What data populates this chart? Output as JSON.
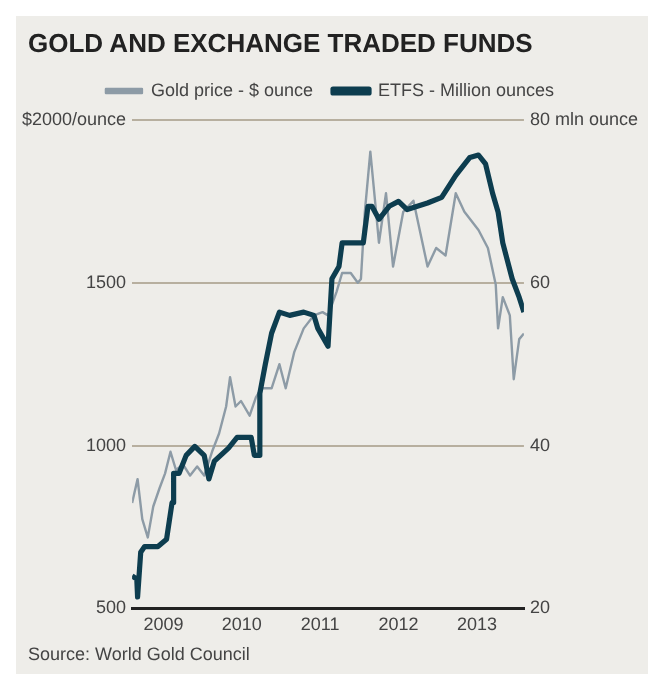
{
  "chart_data": {
    "type": "line",
    "title": "GOLD AND EXCHANGE TRADED FUNDS",
    "annotations": [
      "Source: World Gold Council"
    ],
    "xlim": [
      2008.6,
      2013.6
    ],
    "xticks": [
      2009,
      2010,
      2011,
      2012,
      2013
    ],
    "ylim": [
      500,
      2000
    ],
    "yticks": [
      500,
      1000,
      1500,
      {
        "value": 2000,
        "label": "$2000/ounce"
      }
    ],
    "y2lim": [
      20,
      80
    ],
    "y2ticks": [
      20,
      40,
      60,
      {
        "value": 80,
        "label": "80 mln ounce"
      }
    ],
    "grid": "y",
    "legend": "top",
    "marker": "none",
    "line_style": "solid",
    "series": [
      {
        "name": "Gold price - $ ounce",
        "color": "#8d9ba6",
        "axis": "y",
        "x": [
          2008.6,
          2008.67,
          2008.73,
          2008.8,
          2008.87,
          2008.95,
          2009.02,
          2009.09,
          2009.16,
          2009.25,
          2009.34,
          2009.43,
          2009.52,
          2009.62,
          2009.71,
          2009.8,
          2009.85,
          2009.92,
          2009.99,
          2010.1,
          2010.18,
          2010.25,
          2010.38,
          2010.48,
          2010.56,
          2010.67,
          2010.79,
          2010.92,
          2011.03,
          2011.1,
          2011.21,
          2011.28,
          2011.39,
          2011.48,
          2011.52,
          2011.57,
          2011.64,
          2011.7,
          2011.75,
          2011.84,
          2011.93,
          2012.06,
          2012.19,
          2012.29,
          2012.37,
          2012.48,
          2012.6,
          2012.73,
          2012.84,
          2013.02,
          2013.14,
          2013.24,
          2013.27,
          2013.33,
          2013.42,
          2013.47,
          2013.54,
          2013.6
        ],
        "values": [
          824,
          897,
          774,
          718,
          813,
          869,
          914,
          981,
          925,
          942,
          908,
          936,
          908,
          981,
          1037,
          1120,
          1210,
          1120,
          1137,
          1092,
          1148,
          1176,
          1176,
          1250,
          1176,
          1288,
          1360,
          1400,
          1410,
          1400,
          1473,
          1530,
          1530,
          1500,
          1512,
          1718,
          1903,
          1752,
          1623,
          1775,
          1550,
          1718,
          1752,
          1640,
          1550,
          1607,
          1584,
          1775,
          1718,
          1662,
          1607,
          1495,
          1360,
          1456,
          1400,
          1204,
          1327,
          1344
        ]
      },
      {
        "name": "ETFS - Million ounces",
        "color": "#0d3d4f",
        "axis": "y2",
        "x": [
          2008.6,
          2008.66,
          2008.67,
          2008.71,
          2008.76,
          2008.93,
          2009.04,
          2009.11,
          2009.13,
          2009.2,
          2009.29,
          2009.4,
          2009.52,
          2009.58,
          2009.65,
          2009.83,
          2009.94,
          2010.12,
          2010.16,
          2010.21,
          2010.23,
          2010.3,
          2010.38,
          2010.48,
          2010.61,
          2010.79,
          2010.92,
          2010.97,
          2011.1,
          2011.15,
          2011.24,
          2011.28,
          2011.33,
          2011.55,
          2011.61,
          2011.66,
          2011.75,
          2011.88,
          2012.0,
          2012.11,
          2012.37,
          2012.55,
          2012.73,
          2012.91,
          2013.02,
          2013.11,
          2013.2,
          2013.27,
          2013.33,
          2013.45,
          2013.54,
          2013.6
        ],
        "values": [
          24,
          23.6,
          21.4,
          26.9,
          27.6,
          27.6,
          28.5,
          33,
          36.6,
          36.6,
          38.8,
          39.9,
          38.8,
          35.9,
          38.1,
          39.7,
          41,
          41,
          38.8,
          38.8,
          46.4,
          50,
          53.8,
          56.4,
          56,
          56.4,
          56,
          54.4,
          52.2,
          60.5,
          62,
          64.9,
          64.9,
          64.9,
          69.4,
          69.4,
          67.8,
          69.4,
          70,
          69,
          69.8,
          70.5,
          73.2,
          75.4,
          75.7,
          74.6,
          71,
          68.7,
          64.9,
          60.5,
          58.2,
          56.4
        ]
      }
    ]
  }
}
